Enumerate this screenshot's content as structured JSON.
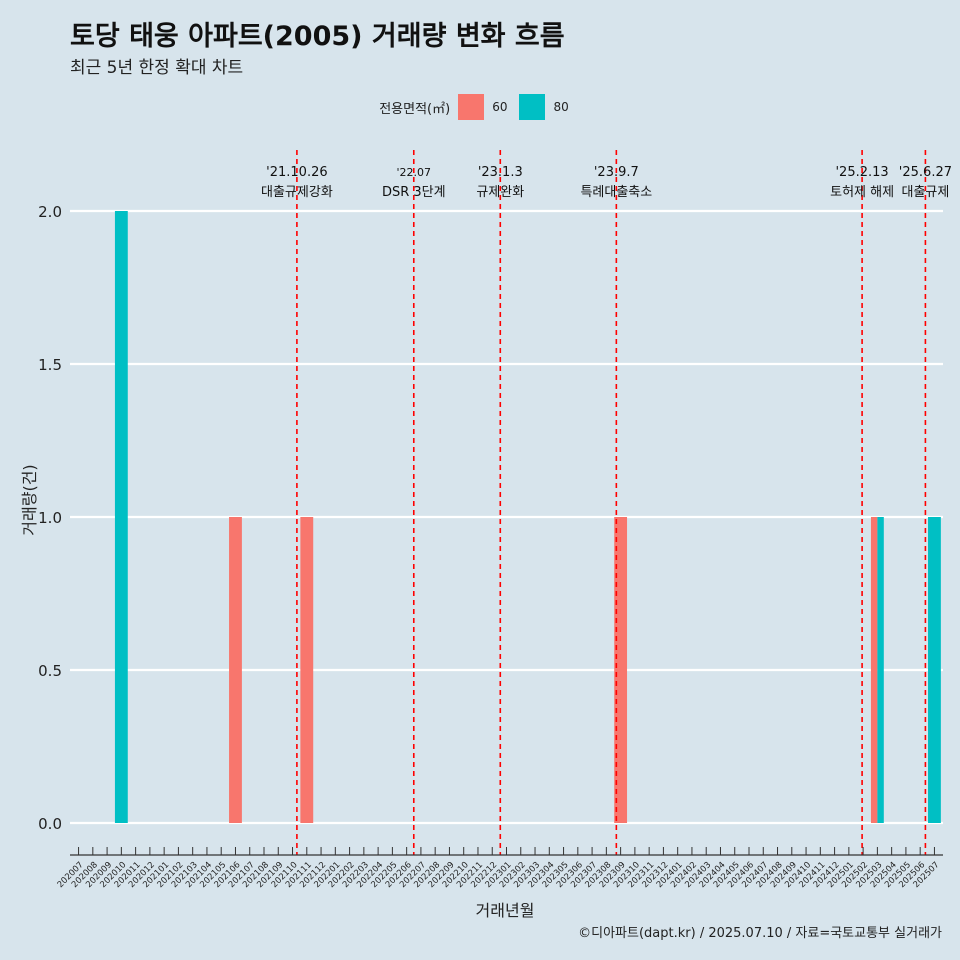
{
  "title": "토당 태웅 아파트(2005) 거래량 변화 흐름",
  "subtitle": "최근 5년 한정 확대 차트",
  "legend": {
    "title": "전용면적(㎡)",
    "items": [
      {
        "label": "60",
        "color": "#f8766d"
      },
      {
        "label": "80",
        "color": "#00bfc4"
      }
    ]
  },
  "caption": "©디아파트(dapt.kr) / 2025.07.10 / 자료=국토교통부 실거래가",
  "chart_data": {
    "type": "bar",
    "title": "토당 태웅 아파트(2005) 거래량 변화 흐름",
    "subtitle": "최근 5년 한정 확대 차트",
    "xlabel": "거래년월",
    "ylabel": "거래량(건)",
    "ylim": [
      0,
      2
    ],
    "yticks": [
      "0.0",
      "0.5",
      "1.0",
      "1.5",
      "2.0"
    ],
    "grid": "horizontal",
    "legend_position": "top",
    "categories": [
      "202007",
      "202008",
      "202009",
      "202010",
      "202011",
      "202012",
      "202101",
      "202102",
      "202103",
      "202104",
      "202105",
      "202106",
      "202107",
      "202108",
      "202109",
      "202110",
      "202111",
      "202112",
      "202201",
      "202202",
      "202203",
      "202204",
      "202205",
      "202206",
      "202207",
      "202208",
      "202209",
      "202210",
      "202211",
      "202212",
      "202301",
      "202302",
      "202303",
      "202304",
      "202305",
      "202306",
      "202307",
      "202308",
      "202309",
      "202310",
      "202311",
      "202312",
      "202401",
      "202402",
      "202403",
      "202404",
      "202405",
      "202406",
      "202407",
      "202408",
      "202409",
      "202410",
      "202411",
      "202412",
      "202501",
      "202502",
      "202503",
      "202504",
      "202505",
      "202506",
      "202507"
    ],
    "series": [
      {
        "name": "60",
        "color": "#f8766d",
        "points": [
          {
            "x": "202106",
            "y": 1
          },
          {
            "x": "202111",
            "y": 1
          },
          {
            "x": "202309",
            "y": 1
          },
          {
            "x": "202503",
            "y": 1
          }
        ]
      },
      {
        "name": "80",
        "color": "#00bfc4",
        "points": [
          {
            "x": "202010",
            "y": 2
          },
          {
            "x": "202503",
            "y": 1
          },
          {
            "x": "202507",
            "y": 1
          }
        ]
      }
    ],
    "annotations": [
      {
        "date": "2021-10-26",
        "line1": "'21.10.26",
        "line2": "대출규제강화"
      },
      {
        "date": "2022-07-01",
        "line1": "'22.07",
        "line2": "DSR 3단계"
      },
      {
        "date": "2023-01-03",
        "line1": "'23.1.3",
        "line2": "규제완화"
      },
      {
        "date": "2023-09-07",
        "line1": "'23.9.7",
        "line2": "특례대출축소"
      },
      {
        "date": "2025-02-13",
        "line1": "'25.2.13",
        "line2": "토허제 해제"
      },
      {
        "date": "2025-06-27",
        "line1": "'25.6.27",
        "line2": "대출규제"
      }
    ]
  }
}
